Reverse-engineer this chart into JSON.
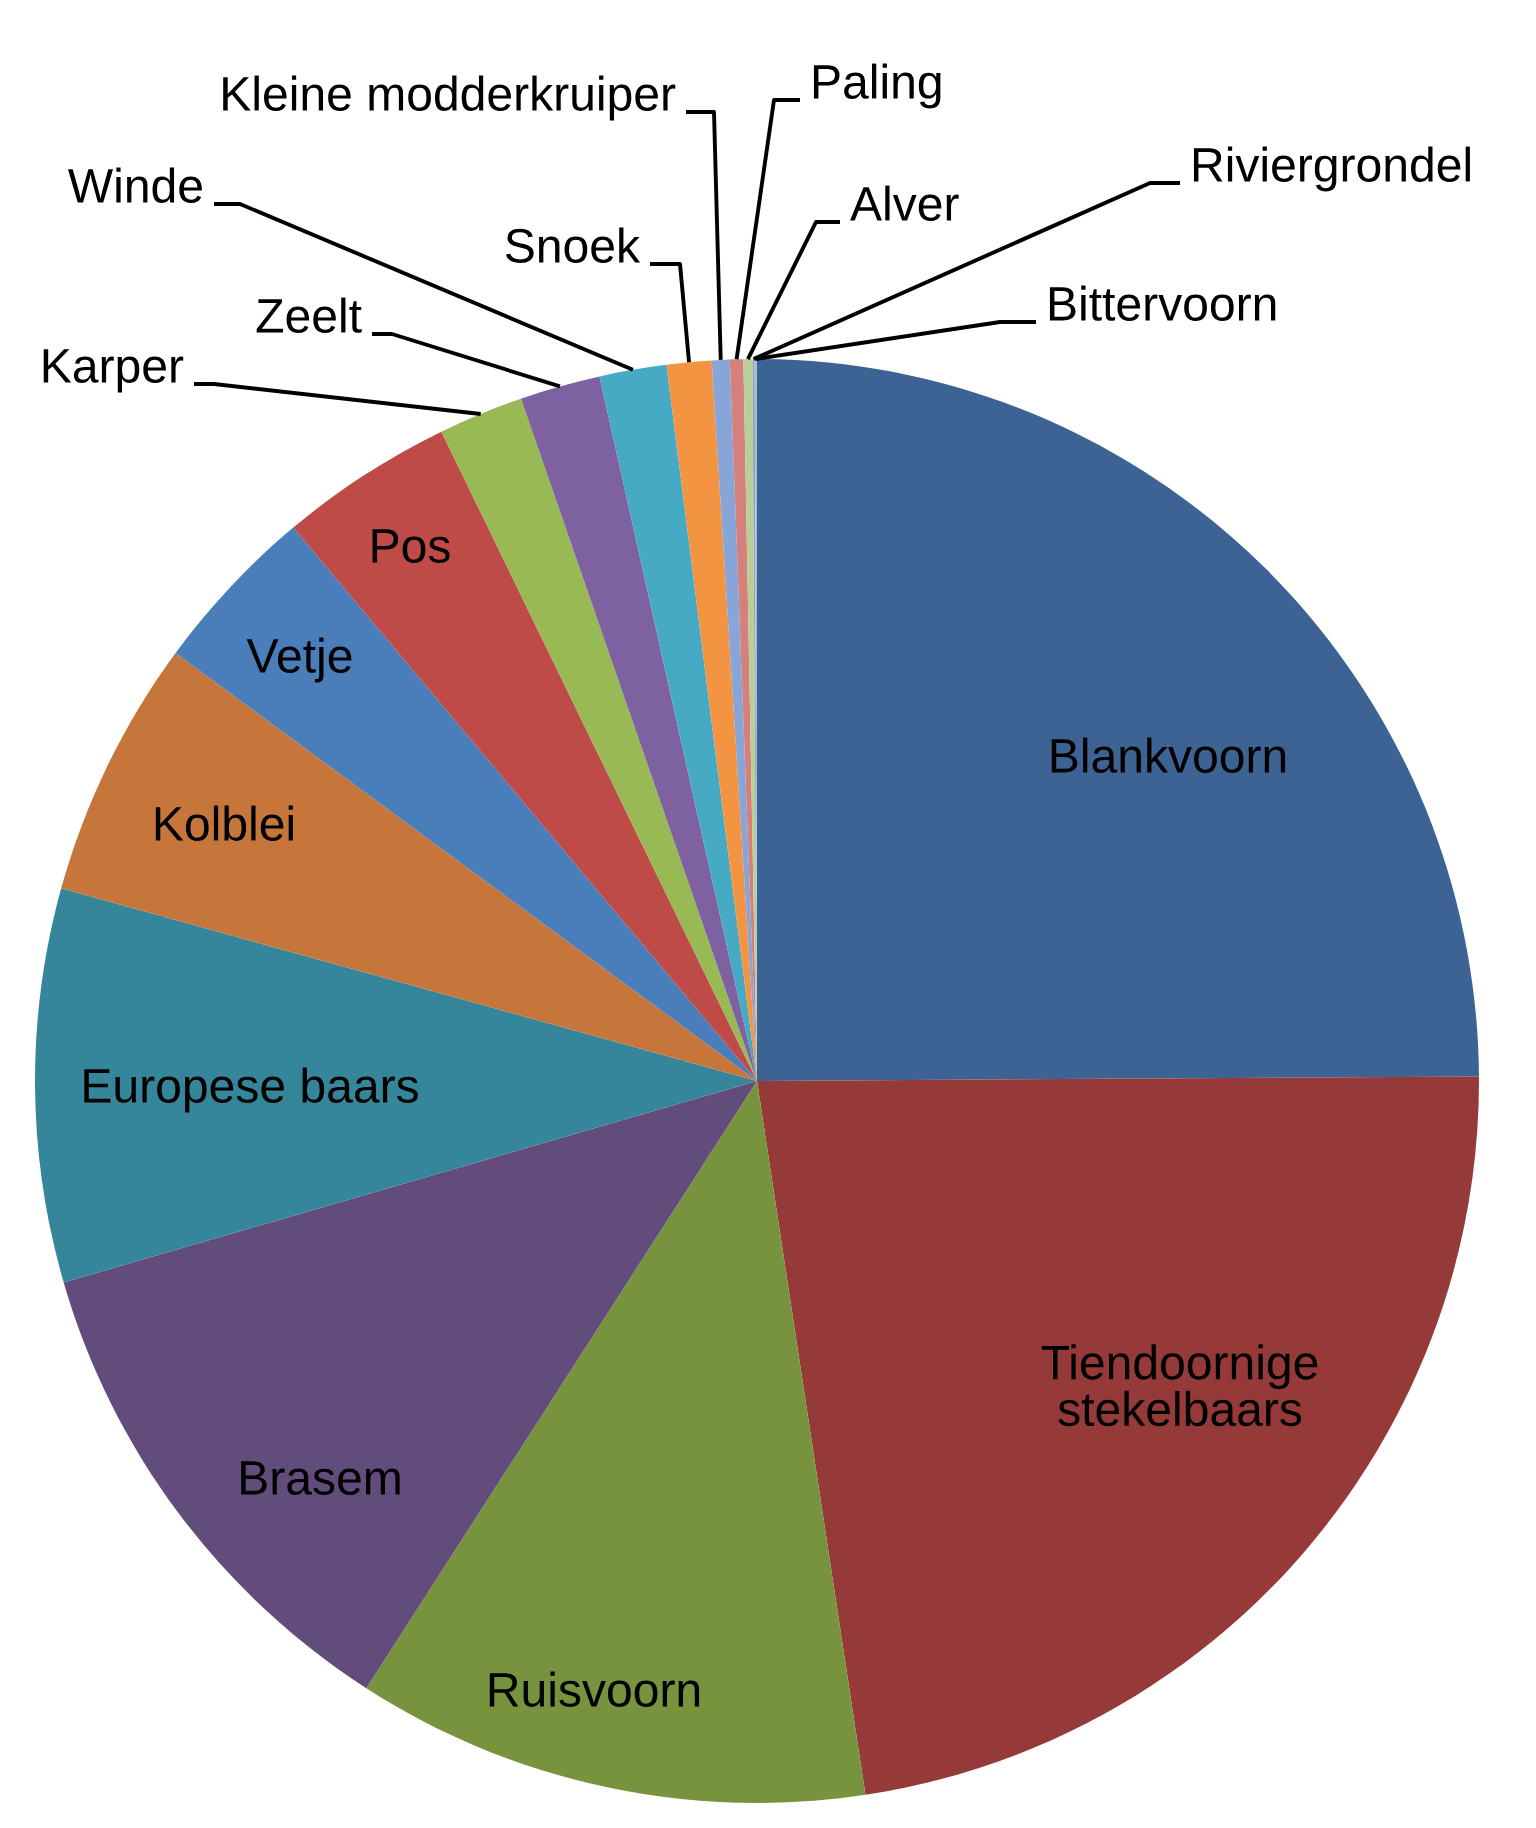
{
  "chart_data": {
    "type": "pie",
    "categories": [
      "Blankvoorn",
      "Tiendoornige stekelbaars",
      "Ruisvoorn",
      "Brasem",
      "Europese baars",
      "Kolblei",
      "Vetje",
      "Pos",
      "Karper",
      "Zeelt",
      "Winde",
      "Snoek",
      "Kleine modderkruiper",
      "Paling",
      "Alver",
      "Riviergrondel",
      "Bittervoorn"
    ],
    "values": [
      24.9,
      22.7,
      11.5,
      11.4,
      8.8,
      5.8,
      3.8,
      3.9,
      1.9,
      1.8,
      1.5,
      1.0,
      0.4,
      0.3,
      0.2,
      0.05,
      0.05
    ],
    "colors": [
      "#3c6394",
      "#953a39",
      "#77933e",
      "#624c7c",
      "#35869b",
      "#c6763a",
      "#4a7ebb",
      "#be4b48",
      "#98b954",
      "#7d61a0",
      "#46aac5",
      "#f39443",
      "#87a5d6",
      "#d4807d",
      "#b9cf95",
      "#a99bbd",
      "#8ccadb"
    ]
  }
}
